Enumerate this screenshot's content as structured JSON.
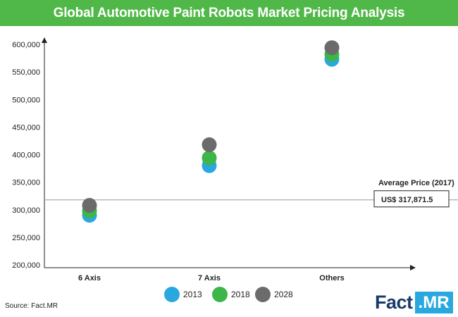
{
  "chart_data": {
    "type": "scatter",
    "title": "Global Automotive Paint Robots Market Pricing Analysis",
    "categories": [
      "6 Axis",
      "7 Axis",
      "Others"
    ],
    "series": [
      {
        "name": "2013",
        "color": "#29a8e0",
        "values": [
          290000,
          380000,
          573000
        ]
      },
      {
        "name": "2018",
        "color": "#3cb64a",
        "values": [
          298000,
          394000,
          582000
        ]
      },
      {
        "name": "2028",
        "color": "#6b6b6b",
        "values": [
          308000,
          418000,
          594000
        ]
      }
    ],
    "ylim": [
      200000,
      600000
    ],
    "yticks": [
      "200,000",
      "250,000",
      "300,000",
      "350,000",
      "400,000",
      "450,000",
      "500,000",
      "550,000",
      "600,000"
    ],
    "reference_line": {
      "value": 317871.5,
      "label": "Average Price (2017)",
      "value_label": "US$  317,871.5"
    },
    "legend": {
      "position": "bottom"
    },
    "grid": false,
    "source": "Source: Fact.MR"
  },
  "logo": {
    "part1": "Fact",
    "part2": ".MR"
  },
  "colors": {
    "title_bar": "#50b848",
    "axis": "#222222",
    "reference_line": "#999999"
  }
}
